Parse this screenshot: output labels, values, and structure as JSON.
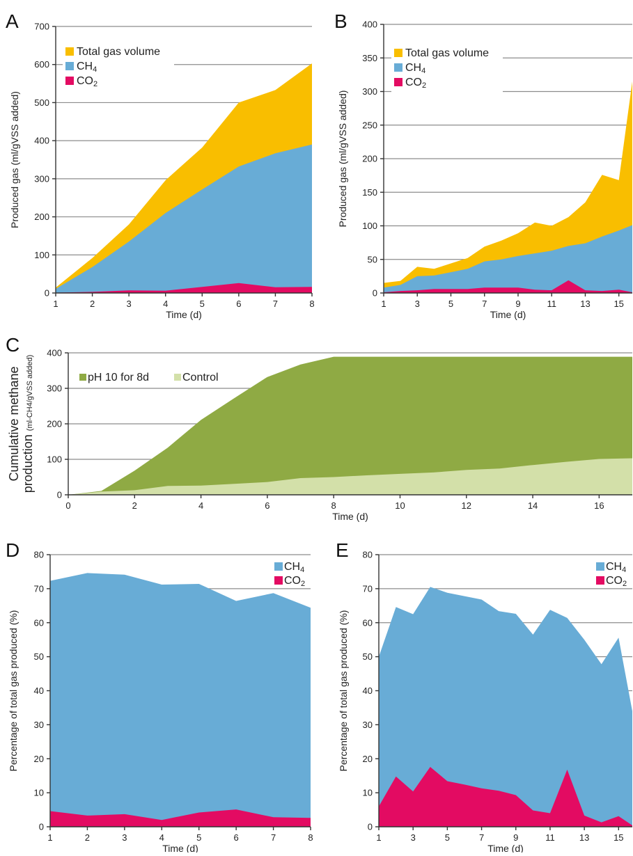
{
  "chart_data": [
    {
      "id": "A",
      "panel_letter": "A",
      "type": "area",
      "xlabel": "Time (d)",
      "ylabel": "Produced gas (ml/gVSS added)",
      "xlim": [
        1,
        8
      ],
      "ylim": [
        0,
        700
      ],
      "xticks": [
        1,
        2,
        3,
        4,
        5,
        6,
        7,
        8
      ],
      "yticks": [
        0,
        100,
        200,
        300,
        400,
        500,
        600,
        700
      ],
      "grid": true,
      "legend_position": "top-left",
      "x": [
        1,
        2,
        3,
        4,
        5,
        6,
        7,
        8
      ],
      "series": [
        {
          "name": "Total gas volume",
          "color": "#F9BE00",
          "values": [
            14,
            92,
            180,
            296,
            382,
            500,
            533,
            603
          ]
        },
        {
          "name": "CH4",
          "color": "#68ACD6",
          "values": [
            11,
            68,
            135,
            210,
            272,
            332,
            367,
            390
          ]
        },
        {
          "name": "CO2",
          "color": "#E30B62",
          "values": [
            1,
            3,
            7,
            6,
            16,
            26,
            15,
            16
          ]
        }
      ]
    },
    {
      "id": "B",
      "panel_letter": "B",
      "type": "area",
      "xlabel": "Time (d)",
      "ylabel": "Produced gas (ml/gVSS added)",
      "xlim": [
        1,
        15.8
      ],
      "ylim": [
        0,
        400
      ],
      "xticks": [
        1,
        3,
        5,
        7,
        9,
        11,
        13,
        15
      ],
      "yticks": [
        0,
        50,
        100,
        150,
        200,
        250,
        300,
        350,
        400
      ],
      "grid": true,
      "legend_position": "top-left",
      "x": [
        1,
        2,
        3,
        4,
        5,
        6,
        7,
        8,
        9,
        10,
        11,
        12,
        13,
        14,
        15,
        15.8
      ],
      "series": [
        {
          "name": "Total gas volume",
          "color": "#F9BE00",
          "values": [
            15,
            18,
            39,
            36,
            44,
            52,
            69,
            78,
            89,
            105,
            100,
            113,
            135,
            176,
            168,
            315
          ]
        },
        {
          "name": "CH4",
          "color": "#68ACD6",
          "values": [
            8,
            12,
            25,
            26,
            31,
            36,
            47,
            50,
            55,
            59,
            63,
            70,
            74,
            84,
            93,
            101
          ]
        },
        {
          "name": "CO2",
          "color": "#E30B62",
          "values": [
            1,
            3,
            4,
            6,
            6,
            6,
            8,
            8,
            8,
            5,
            4,
            19,
            4,
            3,
            5,
            1
          ]
        }
      ]
    },
    {
      "id": "C",
      "panel_letter": "C",
      "type": "area",
      "xlabel": "Time (d)",
      "ylabel_line1": "Cumulative methane",
      "ylabel_line2": "production",
      "ylabel_unit": "(ml-CH4/gVSS added)",
      "xlim": [
        0,
        17
      ],
      "ylim": [
        0,
        400
      ],
      "xticks": [
        0,
        2,
        4,
        6,
        8,
        10,
        12,
        14,
        16
      ],
      "yticks": [
        0,
        100,
        200,
        300,
        400
      ],
      "grid": true,
      "legend_position": "top-left",
      "x": [
        0,
        1,
        2,
        3,
        4,
        5,
        6,
        7,
        8,
        9,
        10,
        11,
        12,
        13,
        14,
        15,
        16,
        17
      ],
      "series": [
        {
          "name": "pH 10 for 8d",
          "color": "#8FAA44",
          "values": [
            0,
            11,
            68,
            133,
            211,
            272,
            332,
            367,
            389,
            389,
            389,
            389,
            389,
            389,
            389,
            389,
            389,
            389
          ]
        },
        {
          "name": "Control",
          "color": "#D3E0A9",
          "values": [
            0,
            9,
            13,
            25,
            26,
            31,
            36,
            47,
            50,
            55,
            59,
            63,
            70,
            74,
            84,
            93,
            101,
            103
          ]
        }
      ]
    },
    {
      "id": "D",
      "panel_letter": "D",
      "type": "area",
      "xlabel": "Time (d)",
      "ylabel": "Percentage of total gas produced (%)",
      "xlim": [
        1,
        8
      ],
      "ylim": [
        0,
        80
      ],
      "xticks": [
        1,
        2,
        3,
        4,
        5,
        6,
        7,
        8
      ],
      "yticks": [
        0,
        10,
        20,
        30,
        40,
        50,
        60,
        70,
        80
      ],
      "grid": true,
      "legend_position": "top-right",
      "x": [
        1,
        2,
        3,
        4,
        5,
        6,
        7,
        8
      ],
      "series": [
        {
          "name": "CH4",
          "color": "#68ACD6",
          "values": [
            72.3,
            74.6,
            74.1,
            71.2,
            71.4,
            66.4,
            68.7,
            64.4
          ]
        },
        {
          "name": "CO2",
          "color": "#E30B62",
          "values": [
            4.6,
            3.3,
            3.7,
            2.0,
            4.2,
            5.1,
            2.8,
            2.6
          ]
        }
      ]
    },
    {
      "id": "E",
      "panel_letter": "E",
      "type": "area",
      "xlabel": "Time (d)",
      "ylabel": "Percentage of total gas produced (%)",
      "xlim": [
        1,
        15.8
      ],
      "ylim": [
        0,
        80
      ],
      "xticks": [
        1,
        3,
        5,
        7,
        9,
        11,
        13,
        15
      ],
      "yticks": [
        0,
        10,
        20,
        30,
        40,
        50,
        60,
        70,
        80
      ],
      "grid": true,
      "legend_position": "top-right",
      "x": [
        1,
        2,
        3,
        4,
        5,
        6,
        7,
        8,
        9,
        10,
        11,
        12,
        13,
        14,
        15,
        15.8
      ],
      "series": [
        {
          "name": "CH4",
          "color": "#68ACD6",
          "values": [
            50.0,
            64.6,
            62.5,
            70.5,
            68.8,
            67.8,
            66.8,
            63.4,
            62.6,
            56.5,
            63.8,
            61.4,
            55.0,
            47.8,
            55.6,
            34.0
          ]
        },
        {
          "name": "CO2",
          "color": "#E30B62",
          "values": [
            6.0,
            14.8,
            10.4,
            17.6,
            13.4,
            12.4,
            11.3,
            10.6,
            9.3,
            4.8,
            4.0,
            16.8,
            3.3,
            1.3,
            3.1,
            0.4
          ]
        }
      ]
    }
  ]
}
